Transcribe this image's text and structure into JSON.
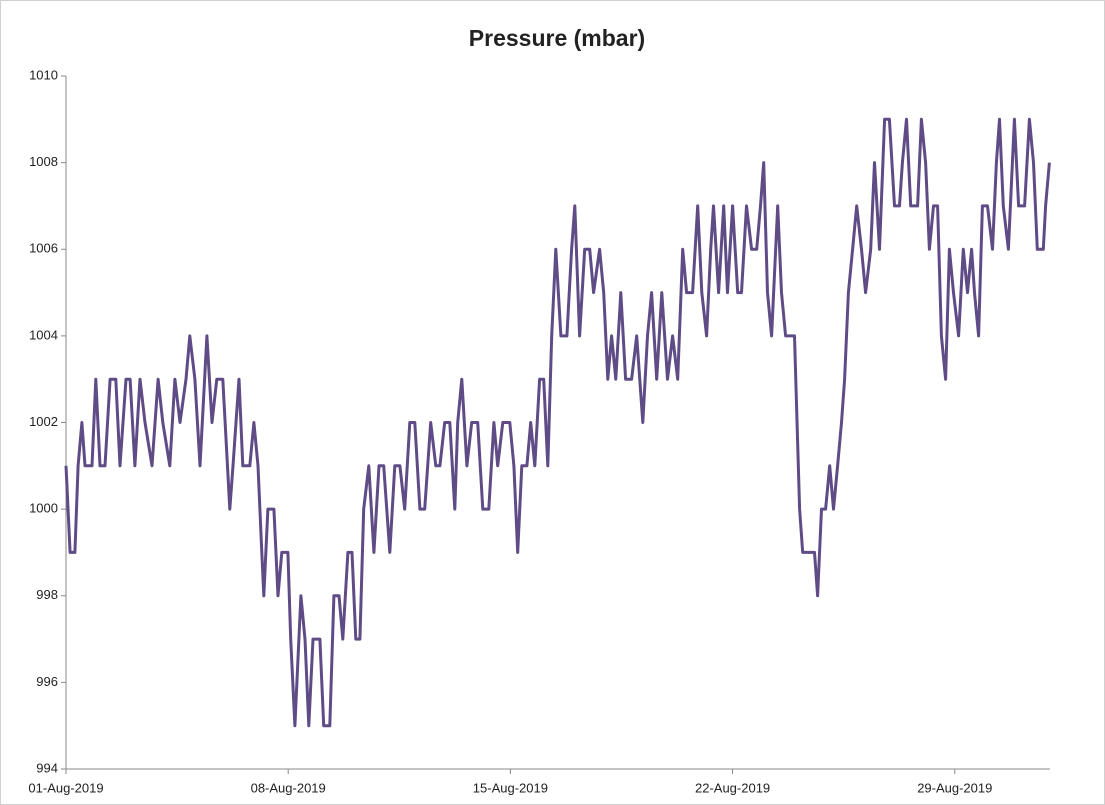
{
  "chart_data": {
    "type": "line",
    "title": "Pressure  (mbar)",
    "x": [
      0,
      0.13,
      0.28,
      0.38,
      0.5,
      0.6,
      0.82,
      0.94,
      1.07,
      1.23,
      1.39,
      1.57,
      1.7,
      1.89,
      2.02,
      2.17,
      2.33,
      2.49,
      2.71,
      2.9,
      3.05,
      3.27,
      3.43,
      3.59,
      3.78,
      3.9,
      4.06,
      4.22,
      4.44,
      4.6,
      4.75,
      4.94,
      5.16,
      5.26,
      5.45,
      5.57,
      5.79,
      5.92,
      6.05,
      6.17,
      6.23,
      6.36,
      6.55,
      6.68,
      6.8,
      6.99,
      7.08,
      7.21,
      7.4,
      7.53,
      7.65,
      7.78,
      8.0,
      8.12,
      8.31,
      8.44,
      8.6,
      8.72,
      8.88,
      9.01,
      9.13,
      9.26,
      9.38,
      9.54,
      9.7,
      9.86,
      10.01,
      10.2,
      10.36,
      10.52,
      10.67,
      10.83,
      10.99,
      11.15,
      11.3,
      11.49,
      11.65,
      11.78,
      11.93,
      12.09,
      12.25,
      12.34,
      12.47,
      12.63,
      12.78,
      12.97,
      13.13,
      13.32,
      13.48,
      13.6,
      13.76,
      13.98,
      14.11,
      14.23,
      14.36,
      14.52,
      14.64,
      14.77,
      14.92,
      15.05,
      15.18,
      15.3,
      15.43,
      15.59,
      15.78,
      15.93,
      16.03,
      16.18,
      16.34,
      16.5,
      16.62,
      16.81,
      16.94,
      17.07,
      17.19,
      17.32,
      17.48,
      17.63,
      17.82,
      17.98,
      18.17,
      18.32,
      18.45,
      18.61,
      18.77,
      18.95,
      19.11,
      19.27,
      19.43,
      19.55,
      19.74,
      19.9,
      20.03,
      20.18,
      20.31,
      20.4,
      20.56,
      20.72,
      20.84,
      21.0,
      21.16,
      21.28,
      21.44,
      21.6,
      21.76,
      21.88,
      21.98,
      22.1,
      22.23,
      22.42,
      22.54,
      22.67,
      22.95,
      23.11,
      23.21,
      23.58,
      23.68,
      23.8,
      23.93,
      24.06,
      24.18,
      24.31,
      24.43,
      24.53,
      24.65,
      24.78,
      24.91,
      25.06,
      25.19,
      25.35,
      25.47,
      25.63,
      25.79,
      25.94,
      26.1,
      26.26,
      26.35,
      26.48,
      26.61,
      26.83,
      26.95,
      27.08,
      27.2,
      27.33,
      27.46,
      27.58,
      27.71,
      27.83,
      27.96,
      28.12,
      28.27,
      28.4,
      28.53,
      28.62,
      28.75,
      28.87,
      29.03,
      29.19,
      29.31,
      29.41,
      29.53,
      29.69,
      29.88,
      30.01,
      30.2,
      30.35,
      30.48,
      30.6,
      30.79,
      30.86,
      30.98
    ],
    "series": [
      {
        "color": "#5f4c86",
        "values": [
          1001,
          999,
          999,
          1001,
          1002,
          1001,
          1001,
          1003,
          1001,
          1001,
          1003,
          1003,
          1001,
          1003,
          1003,
          1001,
          1003,
          1002,
          1001,
          1003,
          1002,
          1001,
          1003,
          1002,
          1003,
          1004,
          1003,
          1001,
          1004,
          1002,
          1003,
          1003,
          1000,
          1001,
          1003,
          1001,
          1001,
          1002,
          1001,
          999,
          998,
          1000,
          1000,
          998,
          999,
          999,
          997,
          995,
          998,
          997,
          995,
          997,
          997,
          995,
          995,
          998,
          998,
          997,
          999,
          999,
          997,
          997,
          1000,
          1001,
          999,
          1001,
          1001,
          999,
          1001,
          1001,
          1000,
          1002,
          1002,
          1000,
          1000,
          1002,
          1001,
          1001,
          1002,
          1002,
          1000,
          1002,
          1003,
          1001,
          1002,
          1002,
          1000,
          1000,
          1002,
          1001,
          1002,
          1002,
          1001,
          999,
          1001,
          1001,
          1002,
          1001,
          1003,
          1003,
          1001,
          1004,
          1006,
          1004,
          1004,
          1006,
          1007,
          1004,
          1006,
          1006,
          1005,
          1006,
          1005,
          1003,
          1004,
          1003,
          1005,
          1003,
          1003,
          1004,
          1002,
          1004,
          1005,
          1003,
          1005,
          1003,
          1004,
          1003,
          1006,
          1005,
          1005,
          1007,
          1005,
          1004,
          1006,
          1007,
          1005,
          1007,
          1005,
          1007,
          1005,
          1005,
          1007,
          1006,
          1006,
          1007,
          1008,
          1005,
          1004,
          1007,
          1005,
          1004,
          1004,
          1000,
          999,
          999,
          998,
          1000,
          1000,
          1001,
          1000,
          1001,
          1002,
          1003,
          1005,
          1006,
          1007,
          1006,
          1005,
          1006,
          1008,
          1006,
          1009,
          1009,
          1007,
          1007,
          1008,
          1009,
          1007,
          1007,
          1009,
          1008,
          1006,
          1007,
          1007,
          1004,
          1003,
          1006,
          1005,
          1004,
          1006,
          1005,
          1006,
          1005,
          1004,
          1007,
          1007,
          1006,
          1008,
          1009,
          1007,
          1006,
          1009,
          1007,
          1007,
          1009,
          1008,
          1006,
          1006,
          1007,
          1008
        ]
      }
    ],
    "xlim": [
      0,
      31
    ],
    "xticks": [
      {
        "value": 0,
        "label": "01-Aug-2019"
      },
      {
        "value": 7,
        "label": "08-Aug-2019"
      },
      {
        "value": 14,
        "label": "15-Aug-2019"
      },
      {
        "value": 21,
        "label": "22-Aug-2019"
      },
      {
        "value": 28,
        "label": "29-Aug-2019"
      }
    ],
    "ylim": [
      994,
      1010
    ],
    "yticks": [
      994,
      996,
      998,
      1000,
      1002,
      1004,
      1006,
      1008,
      1010
    ]
  }
}
